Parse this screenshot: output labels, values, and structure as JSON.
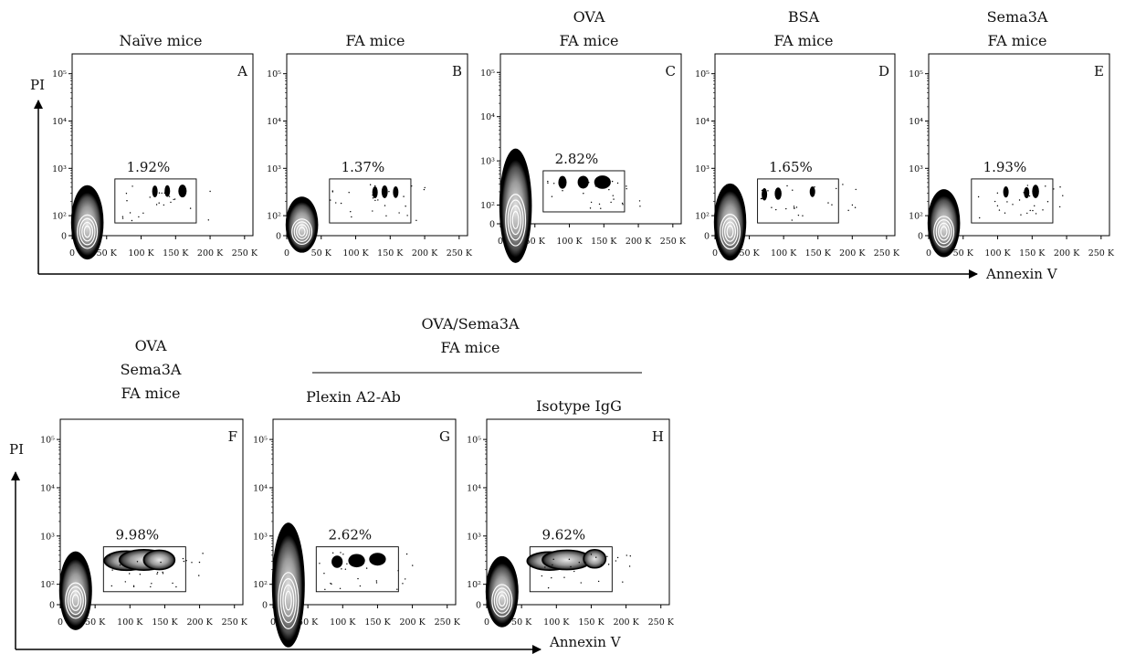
{
  "chart_data": {
    "type": "scatter",
    "xlabel": "Annexin V",
    "ylabel": "PI",
    "x_ticks": [
      "0",
      "50 K",
      "100 K",
      "150 K",
      "200 K",
      "250 K"
    ],
    "y_ticks": [
      "0",
      "10²",
      "10³",
      "10⁴",
      "10⁵"
    ],
    "xlim": [
      0,
      262144
    ],
    "ylim": [
      0,
      262144
    ],
    "group_header": [
      "OVA/Sema3A",
      "FA mice"
    ],
    "panels": [
      {
        "letter": "A",
        "title": [
          "Naïve mice"
        ],
        "gate_percent": "1.92%",
        "gate_x": [
          62000,
          180000
        ],
        "gate_y": [
          0,
          300
        ]
      },
      {
        "letter": "B",
        "title": [
          "FA mice"
        ],
        "gate_percent": "1.37%",
        "gate_x": [
          62000,
          180000
        ],
        "gate_y": [
          0,
          300
        ]
      },
      {
        "letter": "C",
        "title": [
          "OVA",
          "FA mice"
        ],
        "gate_percent": "2.82%",
        "gate_x": [
          62000,
          180000
        ],
        "gate_y": [
          0,
          300
        ]
      },
      {
        "letter": "D",
        "title": [
          "BSA",
          "FA mice"
        ],
        "gate_percent": "1.65%",
        "gate_x": [
          62000,
          180000
        ],
        "gate_y": [
          0,
          300
        ]
      },
      {
        "letter": "E",
        "title": [
          "Sema3A",
          "FA mice"
        ],
        "gate_percent": "1.93%",
        "gate_x": [
          62000,
          180000
        ],
        "gate_y": [
          0,
          300
        ]
      },
      {
        "letter": "F",
        "title": [
          "OVA",
          "Sema3A",
          "FA mice"
        ],
        "gate_percent": "9.98%",
        "gate_x": [
          62000,
          180000
        ],
        "gate_y": [
          0,
          300
        ]
      },
      {
        "letter": "G",
        "title": [
          "Plexin A2-Ab"
        ],
        "gate_percent": "2.62%",
        "gate_x": [
          62000,
          180000
        ],
        "gate_y": [
          0,
          300
        ]
      },
      {
        "letter": "H",
        "title": [
          "Isotype IgG"
        ],
        "gate_percent": "9.62%",
        "gate_x": [
          62000,
          180000
        ],
        "gate_y": [
          0,
          300
        ]
      }
    ]
  }
}
